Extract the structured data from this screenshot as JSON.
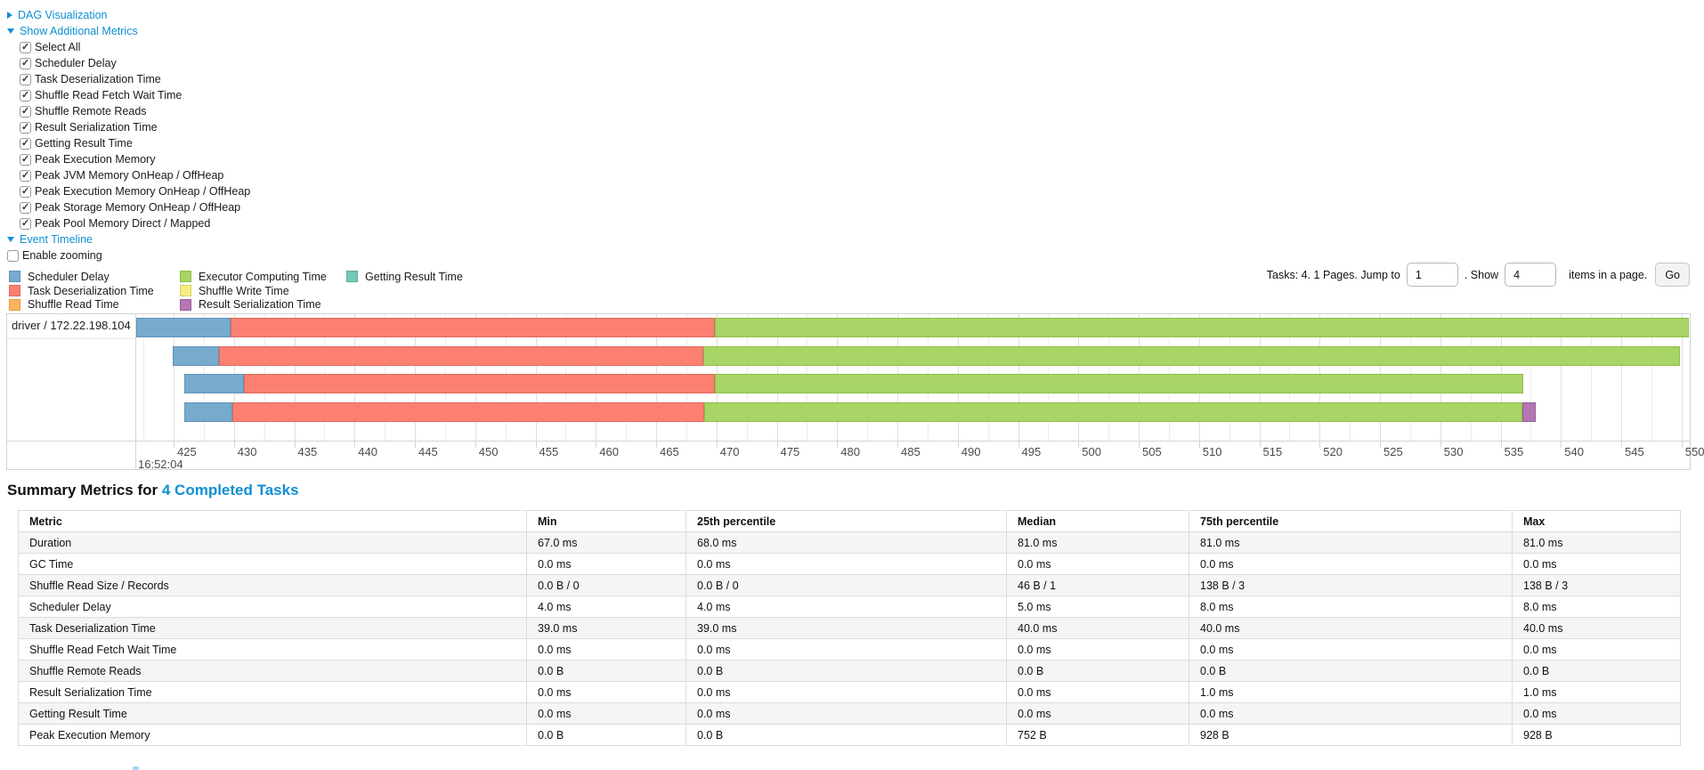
{
  "controls": {
    "dag_label": "DAG Visualization",
    "metrics_label": "Show Additional Metrics",
    "metric_checkboxes": [
      {
        "label": "Select All",
        "checked": true
      },
      {
        "label": "Scheduler Delay",
        "checked": true
      },
      {
        "label": "Task Deserialization Time",
        "checked": true
      },
      {
        "label": "Shuffle Read Fetch Wait Time",
        "checked": true
      },
      {
        "label": "Shuffle Remote Reads",
        "checked": true
      },
      {
        "label": "Result Serialization Time",
        "checked": true
      },
      {
        "label": "Getting Result Time",
        "checked": true
      },
      {
        "label": "Peak Execution Memory",
        "checked": true
      },
      {
        "label": "Peak JVM Memory OnHeap / OffHeap",
        "checked": true
      },
      {
        "label": "Peak Execution Memory OnHeap / OffHeap",
        "checked": true
      },
      {
        "label": "Peak Storage Memory OnHeap / OffHeap",
        "checked": true
      },
      {
        "label": "Peak Pool Memory Direct / Mapped",
        "checked": true
      }
    ],
    "event_timeline_label": "Event Timeline",
    "enable_zooming": {
      "label": "Enable zooming",
      "checked": false
    }
  },
  "pager": {
    "prefix": "Tasks: 4. 1 Pages. Jump to",
    "jump_value": "1",
    "mid": ". Show",
    "show_value": "4",
    "suffix": "items in a page.",
    "go_label": "Go"
  },
  "legend": {
    "columns": [
      [
        {
          "key": "scheduler_delay",
          "label": "Scheduler Delay"
        },
        {
          "key": "task_deserialization",
          "label": "Task Deserialization Time"
        },
        {
          "key": "shuffle_read",
          "label": "Shuffle Read Time"
        }
      ],
      [
        {
          "key": "executor_computing",
          "label": "Executor Computing Time"
        },
        {
          "key": "shuffle_write",
          "label": "Shuffle Write Time"
        },
        {
          "key": "result_serialization",
          "label": "Result Serialization Time"
        }
      ],
      [
        {
          "key": "getting_result",
          "label": "Getting Result Time"
        }
      ]
    ]
  },
  "chart_data": {
    "type": "timeline",
    "group_label": "driver / 172.22.198.104",
    "time_of_day_label": "16:52:04",
    "axis": {
      "tick_start": 425,
      "tick_end": 550,
      "tick_step": 5,
      "unit": "ms"
    },
    "colors": {
      "scheduler_delay": {
        "fill": "#76abcd",
        "border": "#5e93ba"
      },
      "task_deserialization": {
        "fill": "#fb8072",
        "border": "#de6a5f"
      },
      "shuffle_read": {
        "fill": "#fdb45c",
        "border": "#e09a48"
      },
      "executor_computing": {
        "fill": "#a8d565",
        "border": "#8ebe4c"
      },
      "shuffle_write": {
        "fill": "#f5ec86",
        "border": "#d9ce62"
      },
      "result_serialization": {
        "fill": "#b477b4",
        "border": "#9a5d9a"
      },
      "getting_result": {
        "fill": "#74c7b8",
        "border": "#58ac9c"
      }
    },
    "tasks": [
      {
        "segments": [
          {
            "type": "scheduler_delay",
            "start": 421.9,
            "end": 429.7
          },
          {
            "type": "task_deserialization",
            "start": 429.7,
            "end": 469.9
          },
          {
            "type": "executor_computing",
            "start": 469.9,
            "end": 550.6
          }
        ]
      },
      {
        "segments": [
          {
            "type": "scheduler_delay",
            "start": 424.9,
            "end": 428.8
          },
          {
            "type": "task_deserialization",
            "start": 428.8,
            "end": 468.9
          },
          {
            "type": "executor_computing",
            "start": 468.9,
            "end": 549.9
          }
        ]
      },
      {
        "segments": [
          {
            "type": "scheduler_delay",
            "start": 425.9,
            "end": 430.8
          },
          {
            "type": "task_deserialization",
            "start": 430.8,
            "end": 469.9
          },
          {
            "type": "executor_computing",
            "start": 469.9,
            "end": 536.9
          }
        ]
      },
      {
        "segments": [
          {
            "type": "scheduler_delay",
            "start": 425.9,
            "end": 429.9
          },
          {
            "type": "task_deserialization",
            "start": 429.9,
            "end": 469.0
          },
          {
            "type": "executor_computing",
            "start": 469.0,
            "end": 536.8
          },
          {
            "type": "result_serialization",
            "start": 536.8,
            "end": 537.9
          }
        ]
      }
    ]
  },
  "summary": {
    "heading_prefix": "Summary Metrics for",
    "heading_link": "4 Completed Tasks",
    "table": {
      "headers": [
        "Metric",
        "Min",
        "25th percentile",
        "Median",
        "75th percentile",
        "Max"
      ],
      "rows": [
        {
          "metric": "Duration",
          "values": [
            "67.0 ms",
            "68.0 ms",
            "81.0 ms",
            "81.0 ms",
            "81.0 ms"
          ]
        },
        {
          "metric": "GC Time",
          "values": [
            "0.0 ms",
            "0.0 ms",
            "0.0 ms",
            "0.0 ms",
            "0.0 ms"
          ]
        },
        {
          "metric": "Shuffle Read Size / Records",
          "values": [
            "0.0 B / 0",
            "0.0 B / 0",
            "46 B / 1",
            "138 B / 3",
            "138 B / 3"
          ]
        },
        {
          "metric": "Scheduler Delay",
          "values": [
            "4.0 ms",
            "4.0 ms",
            "5.0 ms",
            "8.0 ms",
            "8.0 ms"
          ]
        },
        {
          "metric": "Task Deserialization Time",
          "values": [
            "39.0 ms",
            "39.0 ms",
            "40.0 ms",
            "40.0 ms",
            "40.0 ms"
          ]
        },
        {
          "metric": "Shuffle Read Fetch Wait Time",
          "values": [
            "0.0 ms",
            "0.0 ms",
            "0.0 ms",
            "0.0 ms",
            "0.0 ms"
          ]
        },
        {
          "metric": "Shuffle Remote Reads",
          "values": [
            "0.0 B",
            "0.0 B",
            "0.0 B",
            "0.0 B",
            "0.0 B"
          ]
        },
        {
          "metric": "Result Serialization Time",
          "values": [
            "0.0 ms",
            "0.0 ms",
            "0.0 ms",
            "1.0 ms",
            "1.0 ms"
          ]
        },
        {
          "metric": "Getting Result Time",
          "values": [
            "0.0 ms",
            "0.0 ms",
            "0.0 ms",
            "0.0 ms",
            "0.0 ms"
          ]
        },
        {
          "metric": "Peak Execution Memory",
          "values": [
            "0.0 B",
            "0.0 B",
            "752 B",
            "928 B",
            "928 B"
          ]
        }
      ]
    }
  }
}
